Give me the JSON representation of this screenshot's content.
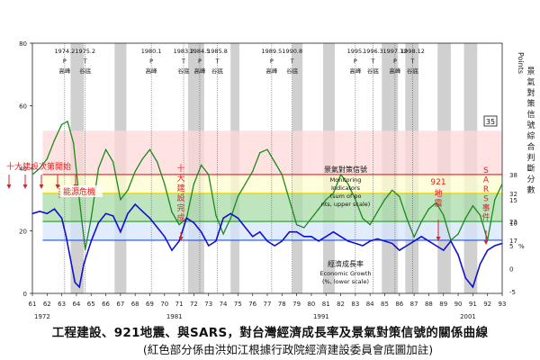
{
  "chart_data": {
    "type": "line",
    "x_range": [
      61,
      93
    ],
    "x_ticks": [
      61,
      62,
      63,
      64,
      65,
      66,
      67,
      68,
      69,
      70,
      71,
      72,
      73,
      74,
      75,
      76,
      77,
      78,
      79,
      80,
      81,
      82,
      83,
      84,
      85,
      86,
      87,
      88,
      89,
      90,
      91,
      92,
      93
    ],
    "decade_labels": [
      {
        "x": 61,
        "label": "1972"
      },
      {
        "x": 70,
        "label": "1981"
      },
      {
        "x": 80,
        "label": "1991"
      },
      {
        "x": 90,
        "label": "2001"
      }
    ],
    "left_axis": {
      "min": 0,
      "max": 80,
      "ticks": [
        0,
        20,
        40,
        60,
        80
      ]
    },
    "right_upper_axis": {
      "label": "Points",
      "ticks": [
        38,
        32,
        23,
        17
      ]
    },
    "right_upper_label": "景氣對策信號綜合判斷分數",
    "right_lower_axis": {
      "ticks": [
        15,
        10,
        5,
        0,
        -5
      ],
      "unit": "%"
    },
    "bands": [
      {
        "label": "",
        "low": 38,
        "high": 52,
        "color": "#ffd8d8"
      },
      {
        "label": "",
        "low": 32,
        "high": 38,
        "color": "#ffffd0"
      },
      {
        "label": "",
        "low": 23,
        "high": 32,
        "color": "#a8dca8"
      },
      {
        "label": "",
        "low": 17,
        "high": 23,
        "color": "#d8e6ff"
      }
    ],
    "threshold_lines": [
      {
        "value": 38,
        "color": "#e02020"
      },
      {
        "value": 32,
        "color": "#e0d000"
      },
      {
        "value": 23,
        "color": "#20a020"
      },
      {
        "value": 17,
        "color": "#2050e0"
      }
    ],
    "recessions": [
      [
        63.6,
        64.5
      ],
      [
        66.6,
        67.4
      ],
      [
        71.6,
        72.7
      ],
      [
        74.5,
        75.1
      ],
      [
        78.7,
        79.4
      ],
      [
        80.8,
        81.6
      ],
      [
        84.8,
        85.9
      ],
      [
        86.4,
        87.3
      ],
      [
        88.6,
        89.5
      ],
      [
        90.4,
        91.3
      ]
    ],
    "turning_points": [
      {
        "x": 63.2,
        "date": "1974.2",
        "letters": "P",
        "phase": "高峰"
      },
      {
        "x": 64.6,
        "date": "1975.2",
        "letters": "T",
        "phase": "谷底"
      },
      {
        "x": 69.1,
        "date": "1980.1",
        "letters": "P",
        "phase": "高峰"
      },
      {
        "x": 71.3,
        "date": "1983.2",
        "letters": "T",
        "phase": "谷底"
      },
      {
        "x": 72.4,
        "date": "1984.5",
        "letters": "P",
        "phase": "高峰"
      },
      {
        "x": 73.6,
        "date": "1985.8",
        "letters": "T",
        "phase": "谷底"
      },
      {
        "x": 77.3,
        "date": "1989.5",
        "letters": "P",
        "phase": "高峰"
      },
      {
        "x": 78.7,
        "date": "1990.8",
        "letters": "T",
        "phase": "谷底"
      },
      {
        "x": 83.0,
        "date": "1995.",
        "letters": "P",
        "phase": "高峰"
      },
      {
        "x": 84.2,
        "date": "1996.3",
        "letters": "T",
        "phase": "谷底"
      },
      {
        "x": 85.7,
        "date": "1997.12",
        "letters": "P",
        "phase": "高峰"
      },
      {
        "x": 86.9,
        "date": "1998.12",
        "letters": "T",
        "phase": "谷底"
      }
    ],
    "series": [
      {
        "name": "景氣對策信號",
        "color": "#1a8a1a",
        "axis": "left",
        "x": [
          61,
          61.5,
          62,
          62.5,
          63,
          63.4,
          63.8,
          64.2,
          64.6,
          65,
          65.5,
          66,
          66.5,
          67,
          67.5,
          68,
          68.5,
          69,
          69.5,
          70,
          70.5,
          71,
          71.5,
          72,
          72.5,
          73,
          73.5,
          74,
          74.5,
          75,
          75.5,
          76,
          76.5,
          77,
          77.5,
          78,
          78.5,
          79,
          79.5,
          80,
          80.5,
          81,
          81.5,
          82,
          82.5,
          83,
          83.5,
          84,
          84.5,
          85,
          85.5,
          86,
          86.5,
          87,
          87.5,
          88,
          88.5,
          89,
          89.5,
          90,
          90.5,
          91,
          91.5,
          92,
          92.5,
          93
        ],
        "y": [
          38,
          40,
          43,
          49,
          54,
          55,
          48,
          30,
          14,
          24,
          40,
          46,
          42,
          30,
          33,
          39,
          43,
          46,
          42,
          35,
          26,
          22,
          24,
          35,
          41,
          38,
          25,
          19,
          24,
          31,
          35,
          39,
          45,
          46,
          42,
          38,
          30,
          22,
          21,
          24,
          27,
          30,
          32,
          38,
          35,
          30,
          24,
          22,
          26,
          30,
          33,
          31,
          24,
          18,
          23,
          27,
          29,
          25,
          17,
          19,
          24,
          28,
          25,
          17,
          30,
          35
        ]
      },
      {
        "name": "經濟成長率",
        "color": "#1010d0",
        "axis": "right_lower",
        "x": [
          61,
          61.5,
          62,
          62.5,
          63,
          63.3,
          63.6,
          63.9,
          64.2,
          64.5,
          65,
          65.5,
          66,
          66.5,
          67,
          67.5,
          68,
          68.5,
          69,
          69.5,
          70,
          70.5,
          71,
          71.5,
          72,
          72.5,
          73,
          73.5,
          74,
          74.5,
          75,
          75.5,
          76,
          76.5,
          77,
          77.5,
          78,
          78.5,
          79,
          79.5,
          80,
          80.5,
          81,
          81.5,
          82,
          82.5,
          83,
          83.5,
          84,
          84.5,
          85,
          85.5,
          86,
          86.5,
          87,
          87.5,
          88,
          88.5,
          89,
          89.5,
          90,
          90.5,
          91,
          91.5,
          92,
          92.5,
          93
        ],
        "y": [
          12,
          12.5,
          12,
          13,
          11,
          7,
          2,
          -3,
          -4,
          1,
          6,
          10,
          12,
          11.5,
          8,
          12,
          14,
          12.5,
          11,
          9,
          7,
          4,
          6,
          11,
          10,
          8,
          5,
          6,
          11,
          12,
          11,
          9,
          7,
          8,
          6,
          5,
          6,
          8,
          8,
          7,
          7,
          6,
          7,
          8,
          7,
          6,
          5.5,
          5,
          6,
          6.5,
          6,
          5.5,
          4,
          5,
          6,
          7,
          6,
          5,
          4,
          6,
          3,
          -2,
          -4,
          1,
          4,
          5,
          5.5
        ]
      }
    ],
    "annotations": [
      {
        "id": "ten_projects",
        "text": "十大建設次第開始",
        "color": "#e02020"
      },
      {
        "id": "energy_crisis",
        "text": "能源危機",
        "color": "#e02020"
      },
      {
        "id": "ten_done",
        "text": "十大建設完成",
        "color": "#e02020"
      },
      {
        "id": "quake",
        "text": "921地震",
        "color": "#e02020"
      },
      {
        "id": "sars",
        "text": "SARS事件",
        "color": "#e02020"
      },
      {
        "id": "signal_cn",
        "text": "景氣對策信號",
        "color": "#111"
      },
      {
        "id": "signal_en",
        "text": "Monitoring Indicators (sum of points, upper scale)",
        "color": "#111"
      },
      {
        "id": "growth_cn",
        "text": "經濟成長率",
        "color": "#111"
      },
      {
        "id": "growth_en",
        "text": "Economic Growth (%, lower scale)",
        "color": "#111"
      },
      {
        "id": "latest",
        "text": "35",
        "color": "#111"
      }
    ]
  },
  "caption": {
    "title": "工程建設、921地震、與SARS，對台灣經濟成長率及景氣對策信號的關係曲線",
    "subtitle": "(紅色部分係由洪如江根據行政院經濟建設委員會底圖加註)"
  }
}
